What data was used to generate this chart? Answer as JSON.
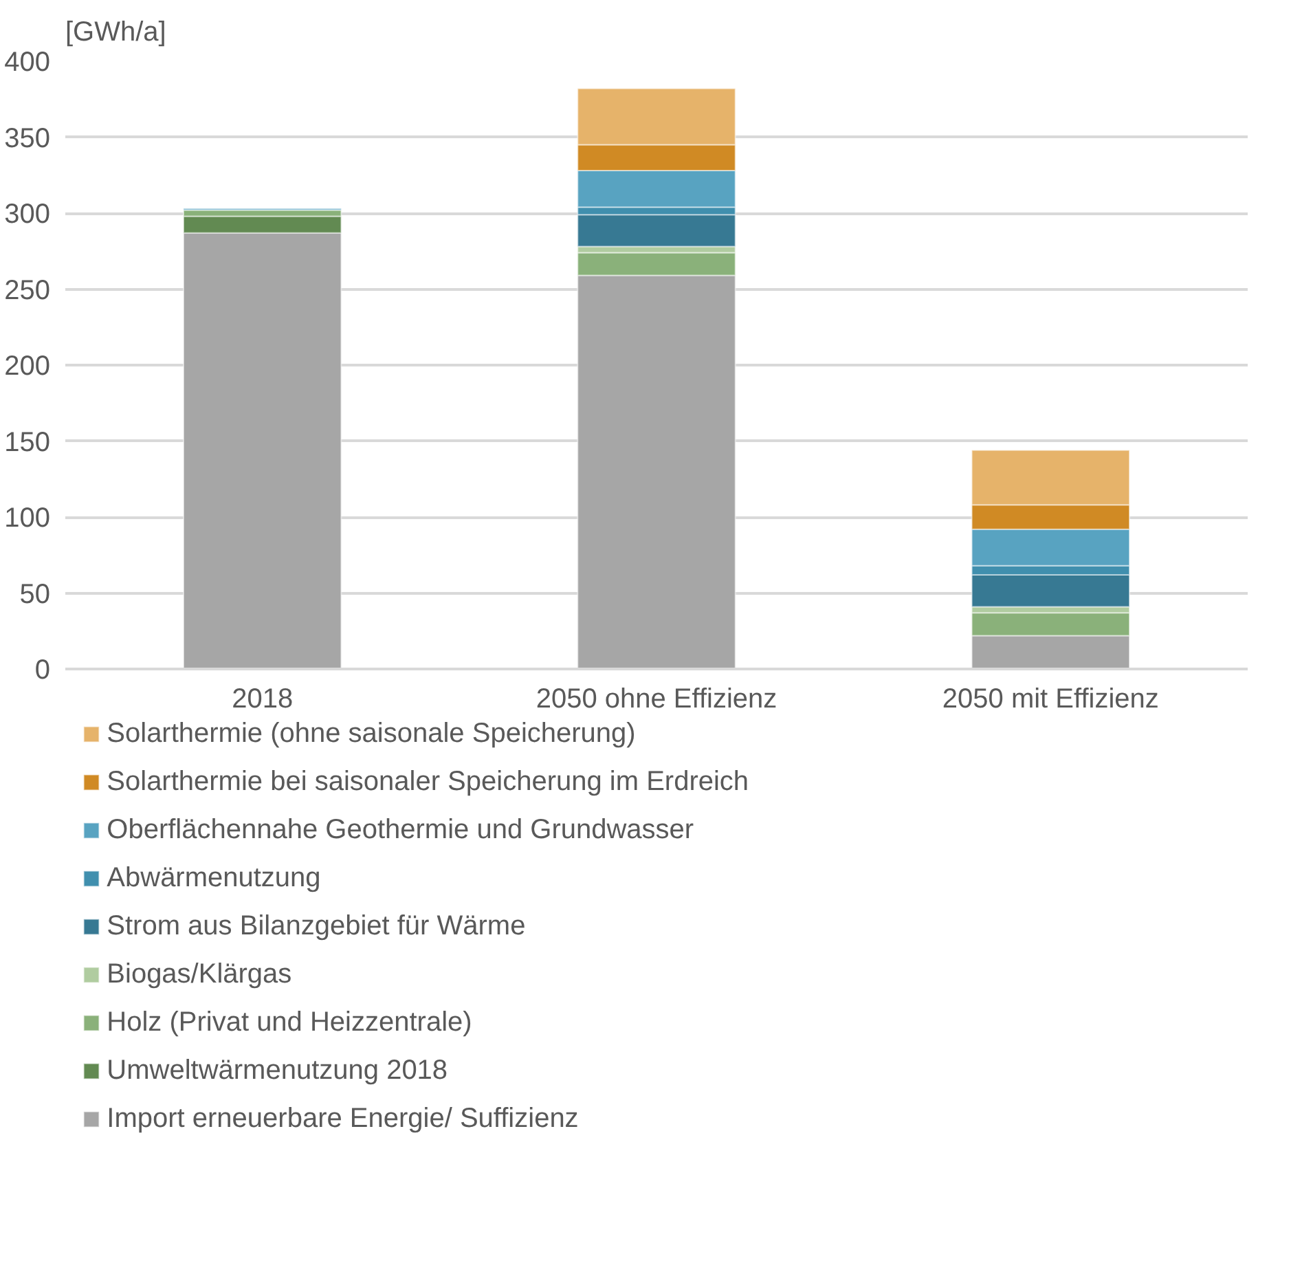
{
  "chart_data": {
    "type": "bar",
    "stacked": true,
    "ylabel": "[GWh/a]",
    "categories": [
      "2018",
      "2050 ohne Effizienz",
      "2050 mit Effizienz"
    ],
    "ylim": [
      0,
      400
    ],
    "yticks": [
      0,
      50,
      100,
      150,
      200,
      250,
      300,
      350,
      400
    ],
    "grid": "y",
    "legend": "bottom",
    "series": [
      {
        "name": "Import erneuerbare Energie/ Suffizienz",
        "color": "#a6a6a6",
        "values": [
          287,
          259,
          22
        ]
      },
      {
        "name": "Umweltwärmenutzung 2018",
        "color": "#628a52",
        "values": [
          11,
          null,
          null
        ]
      },
      {
        "name": "Holz (Privat und Heizzentrale)",
        "color": "#8ab17a",
        "values": [
          4,
          15,
          15
        ]
      },
      {
        "name": "Biogas/Klärgas",
        "color": "#b0cca0",
        "values": [
          null,
          4,
          4
        ]
      },
      {
        "name": "Strom aus Bilanzgebiet für Wärme",
        "color": "#377993",
        "values": [
          null,
          21,
          21
        ]
      },
      {
        "name": "Abwärmenutzung",
        "color": "#408fae",
        "values": [
          null,
          5,
          6
        ]
      },
      {
        "name": "Oberflächennahe Geothermie und Grundwasser",
        "color": "#58a3c1",
        "values": [
          1,
          24,
          24
        ]
      },
      {
        "name": "Solarthermie bei saisonaler Speicherung im Erdreich",
        "color": "#d08a24",
        "values": [
          null,
          17,
          16
        ]
      },
      {
        "name": "Solarthermie (ohne saisonale Speicherung)",
        "color": "#e6b36a",
        "values": [
          null,
          37,
          36
        ]
      }
    ]
  }
}
